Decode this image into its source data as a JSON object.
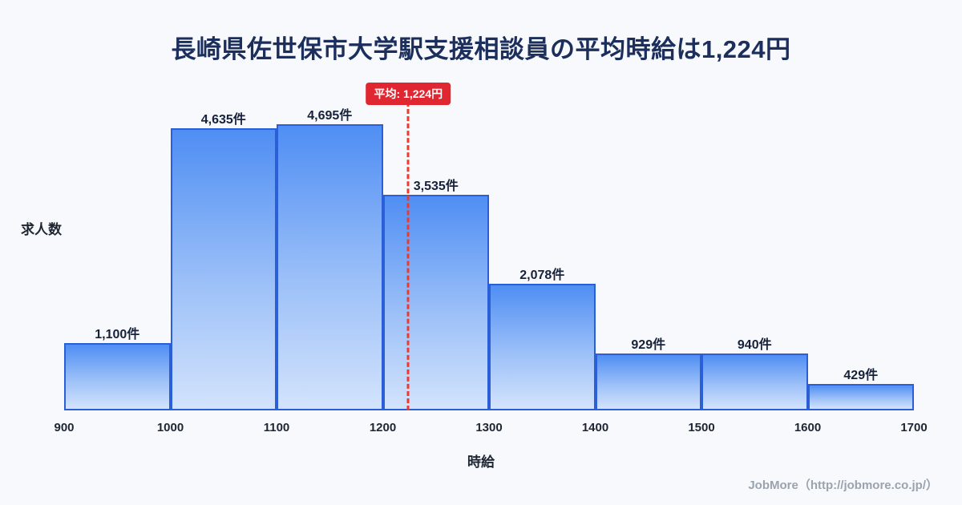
{
  "title": "長崎県佐世保市大学駅支援相談員の平均時給は1,224円",
  "footer": {
    "credit": "JobMore（http://jobmore.co.jp/）"
  },
  "chart_data": {
    "type": "bar",
    "title": "長崎県佐世保市大学駅支援相談員の平均時給は1,224円",
    "xlabel": "時給",
    "ylabel": "求人数",
    "bin_edges": [
      900,
      1000,
      1100,
      1200,
      1300,
      1400,
      1500,
      1600,
      1700
    ],
    "tick_labels": [
      "900",
      "1000",
      "1100",
      "1200",
      "1300",
      "1400",
      "1500",
      "1600",
      "1700"
    ],
    "values": [
      1100,
      4635,
      4695,
      3535,
      2078,
      929,
      940,
      429
    ],
    "bar_labels": [
      "1,100件",
      "4,635件",
      "4,695件",
      "3,535件",
      "2,078件",
      "929件",
      "940件",
      "429件"
    ],
    "xlim": [
      900,
      1700
    ],
    "ylim": [
      0,
      5000
    ],
    "grid": false,
    "legend": "none",
    "average": 1224,
    "average_label": "平均: 1,224円",
    "colors": {
      "bar_top": "#4f8ef3",
      "bar_bottom": "#d3e3fc",
      "bar_border": "#2a5fd8",
      "average_line": "#ef392d",
      "badge_bg": "#e02631",
      "title_text": "#1b2e5c",
      "background": "#f7f9fc"
    }
  }
}
